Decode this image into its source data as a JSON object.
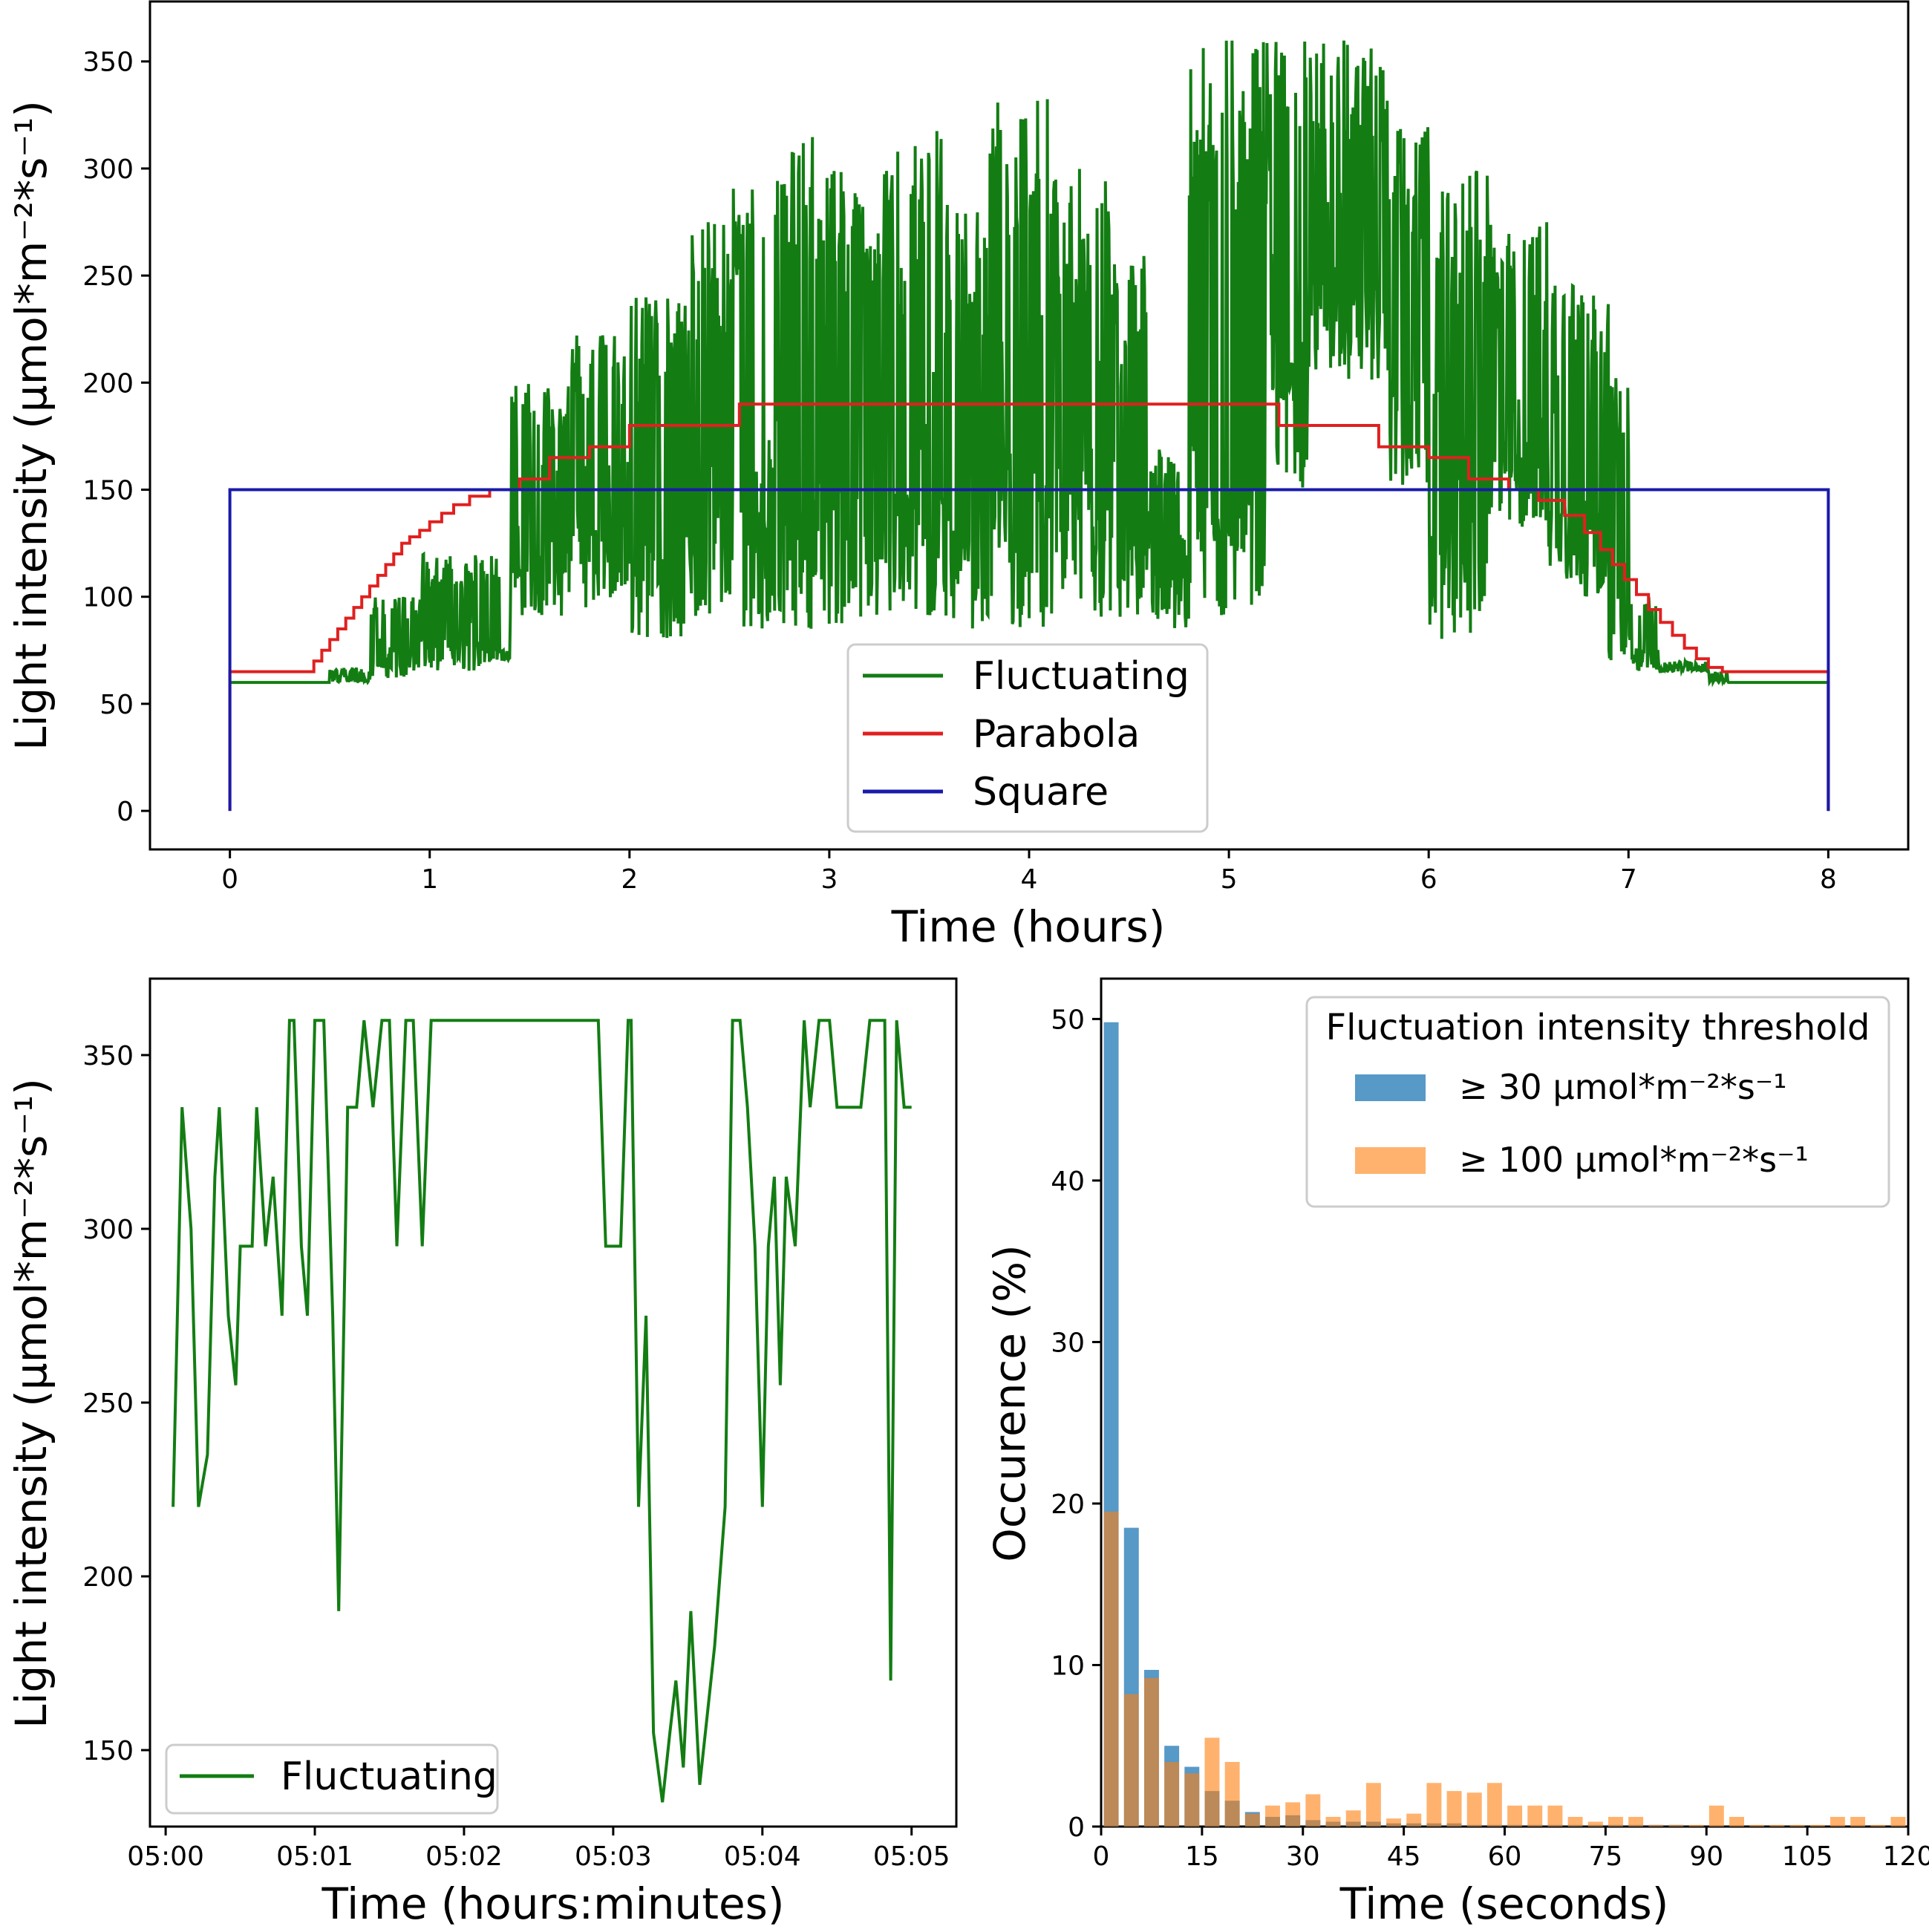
{
  "chart_data": [
    {
      "id": "top",
      "type": "line",
      "xlabel": "Time (hours)",
      "ylabel": "Light intensity (μmol*m⁻²*s⁻¹)",
      "xlim": [
        -0.4,
        8.4
      ],
      "ylim": [
        -18,
        378
      ],
      "xticks": [
        "0",
        "1",
        "2",
        "3",
        "4",
        "5",
        "6",
        "7",
        "8"
      ],
      "yticks": [
        "0",
        "50",
        "100",
        "150",
        "200",
        "250",
        "300",
        "350"
      ],
      "legend": {
        "position": "lower-center",
        "entries": [
          "Fluctuating",
          "Parabola",
          "Square"
        ]
      },
      "colors": {
        "Fluctuating": "#137d13",
        "Parabola": "#e02020",
        "Square": "#1a1aaa"
      },
      "series": [
        {
          "name": "Square",
          "x": [
            0,
            0,
            8,
            8
          ],
          "y": [
            0,
            150,
            150,
            0
          ]
        },
        {
          "name": "Parabola",
          "step": true,
          "x": [
            0,
            0,
            0.38,
            0.42,
            0.46,
            0.5,
            0.54,
            0.58,
            0.62,
            0.66,
            0.7,
            0.74,
            0.78,
            0.82,
            0.86,
            0.9,
            0.95,
            1.0,
            1.06,
            1.12,
            1.2,
            1.3,
            1.45,
            1.6,
            1.8,
            2.0,
            2.5,
            2.55,
            5.25,
            5.75,
            6.0,
            6.2,
            6.4,
            6.55,
            6.68,
            6.78,
            6.86,
            6.92,
            6.98,
            7.04,
            7.1,
            7.16,
            7.22,
            7.28,
            7.34,
            7.4,
            7.47,
            8,
            8
          ],
          "y": [
            0,
            65,
            65,
            70,
            75,
            80,
            85,
            90,
            95,
            100,
            105,
            110,
            115,
            120,
            125,
            128,
            131,
            135,
            139,
            143,
            147,
            150,
            155,
            165,
            170,
            180,
            180,
            190,
            180,
            170,
            165,
            155,
            150,
            145,
            138,
            130,
            122,
            115,
            108,
            101,
            94,
            88,
            82,
            76,
            71,
            67,
            65,
            65,
            0
          ]
        },
        {
          "name": "Fluctuating",
          "bands": [
            [
              0.0,
              60,
              60
            ],
            [
              0.5,
              60,
              67
            ],
            [
              0.7,
              62,
              100
            ],
            [
              0.95,
              65,
              120
            ],
            [
              1.35,
              70,
              75
            ],
            [
              1.4,
              90,
              200
            ],
            [
              1.7,
              95,
              225
            ],
            [
              2.0,
              80,
              240
            ],
            [
              2.3,
              85,
              275
            ],
            [
              2.5,
              85,
              295
            ],
            [
              2.8,
              85,
              315
            ],
            [
              3.0,
              85,
              300
            ],
            [
              3.3,
              85,
              320
            ],
            [
              3.6,
              85,
              280
            ],
            [
              3.8,
              85,
              335
            ],
            [
              4.1,
              85,
              300
            ],
            [
              4.4,
              85,
              260
            ],
            [
              4.6,
              85,
              170
            ],
            [
              4.75,
              85,
              130
            ],
            [
              4.8,
              90,
              360
            ],
            [
              5.2,
              150,
              360
            ],
            [
              5.4,
              200,
              360
            ],
            [
              5.8,
              150,
              320
            ],
            [
              6.0,
              80,
              300
            ],
            [
              6.3,
              130,
              275
            ],
            [
              6.6,
              100,
              250
            ],
            [
              6.9,
              65,
              205
            ],
            [
              7.0,
              65,
              100
            ],
            [
              7.15,
              65,
              70
            ],
            [
              7.4,
              60,
              65
            ],
            [
              7.5,
              60,
              60
            ],
            [
              8.0,
              60,
              60
            ]
          ],
          "y_start": 60,
          "y_end": 0
        }
      ]
    },
    {
      "id": "bottom-left",
      "type": "line",
      "xlabel": "Time (hours:minutes)",
      "ylabel": "Light intensity (μmol*m⁻²*s⁻¹)",
      "xlim": [
        -0.105,
        5.3
      ],
      "ylim": [
        128,
        372
      ],
      "xticks": [
        "05:00",
        "05:01",
        "05:02",
        "05:03",
        "05:04",
        "05:05"
      ],
      "yticks": [
        "150",
        "200",
        "250",
        "300",
        "350"
      ],
      "legend": {
        "position": "lower-left",
        "entries": [
          "Fluctuating"
        ]
      },
      "series": [
        {
          "name": "Fluctuating",
          "color": "#137d13",
          "x": [
            0.05,
            0.11,
            0.17,
            0.22,
            0.28,
            0.33,
            0.36,
            0.42,
            0.47,
            0.5,
            0.58,
            0.61,
            0.67,
            0.72,
            0.78,
            0.83,
            0.86,
            0.91,
            0.95,
            1.0,
            1.06,
            1.12,
            1.16,
            1.22,
            1.28,
            1.33,
            1.39,
            1.45,
            1.5,
            1.55,
            1.61,
            1.66,
            1.72,
            1.78,
            1.81,
            1.86,
            1.92,
            1.98,
            2.03,
            2.9,
            2.95,
            3.0,
            3.05,
            3.1,
            3.12,
            3.17,
            3.22,
            3.27,
            3.33,
            3.38,
            3.42,
            3.47,
            3.52,
            3.58,
            3.63,
            3.68,
            3.75,
            3.8,
            3.85,
            3.9,
            3.95,
            4.0,
            4.04,
            4.08,
            4.12,
            4.16,
            4.22,
            4.28,
            4.32,
            4.38,
            4.45,
            4.5,
            4.55,
            4.6,
            4.66,
            4.72,
            4.78,
            4.82,
            4.86,
            4.9,
            4.95,
            5.0
          ],
          "y": [
            220,
            335,
            300,
            220,
            235,
            315,
            335,
            275,
            255,
            295,
            295,
            335,
            295,
            315,
            275,
            360,
            360,
            295,
            275,
            360,
            360,
            275,
            190,
            335,
            335,
            360,
            335,
            360,
            360,
            295,
            360,
            360,
            295,
            360,
            360,
            360,
            360,
            360,
            360,
            360,
            295,
            295,
            295,
            360,
            360,
            220,
            275,
            155,
            135,
            155,
            170,
            145,
            190,
            140,
            160,
            180,
            220,
            360,
            360,
            335,
            295,
            220,
            295,
            315,
            255,
            315,
            295,
            360,
            335,
            360,
            360,
            335,
            335,
            335,
            335,
            360,
            360,
            360,
            170,
            360,
            335,
            335
          ]
        }
      ]
    },
    {
      "id": "bottom-right",
      "type": "bar",
      "xlabel": "Time (seconds)",
      "ylabel": "Occurence (%)",
      "xlim": [
        0,
        120
      ],
      "ylim": [
        0,
        52.5
      ],
      "xticks": [
        "0",
        "15",
        "30",
        "45",
        "60",
        "75",
        "90",
        "105",
        "120"
      ],
      "yticks": [
        "0",
        "10",
        "20",
        "30",
        "40",
        "50"
      ],
      "legend": {
        "position": "top-right",
        "title": "Fluctuation intensity threshold",
        "entries": [
          "≥ 30 μmol*m⁻²*s⁻¹",
          "≥ 100 μmol*m⁻²*s⁻¹"
        ]
      },
      "bin_width_seconds": 3,
      "series": [
        {
          "name": "≥ 30 μmol*m⁻²*s⁻¹",
          "color": "#1f77b4",
          "values": [
            49.8,
            18.5,
            9.7,
            5.0,
            3.7,
            2.2,
            1.6,
            0.9,
            0.6,
            0.7,
            0.4,
            0.3,
            0.3,
            0.3,
            0.2,
            0.2,
            0.2,
            0.2,
            0.1,
            0.1,
            0.1,
            0.1,
            0.1,
            0.1,
            0.1,
            0.1,
            0.1,
            0.1,
            0.1,
            0.05,
            0.05,
            0.05,
            0.05,
            0.05,
            0.05,
            0.05,
            0.05,
            0.05,
            0.05,
            0.05
          ]
        },
        {
          "name": "≥ 100 μmol*m⁻²*s⁻¹",
          "color": "#ff7f0e",
          "values": [
            19.5,
            8.2,
            9.2,
            4.0,
            3.3,
            5.5,
            4.0,
            0.8,
            1.3,
            1.5,
            2.0,
            0.6,
            1.0,
            2.7,
            0.5,
            0.8,
            2.7,
            2.2,
            2.1,
            2.7,
            1.3,
            1.3,
            1.3,
            0.6,
            0.3,
            0.6,
            0.6,
            0.1,
            0.1,
            0.1,
            1.3,
            0.6,
            0.1,
            0.1,
            0.1,
            0.1,
            0.6,
            0.6,
            0.1,
            0.6
          ]
        }
      ]
    }
  ]
}
